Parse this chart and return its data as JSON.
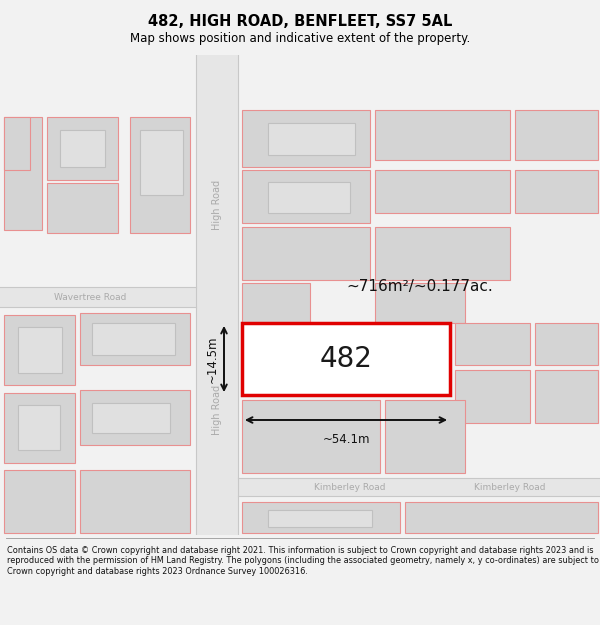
{
  "title": "482, HIGH ROAD, BENFLEET, SS7 5AL",
  "subtitle": "Map shows position and indicative extent of the property.",
  "footer": "Contains OS data © Crown copyright and database right 2021. This information is subject to Crown copyright and database rights 2023 and is reproduced with the permission of HM Land Registry. The polygons (including the associated geometry, namely x, y co-ordinates) are subject to Crown copyright and database rights 2023 Ordnance Survey 100026316.",
  "bg_color": "#f2f2f2",
  "map_bg": "#ffffff",
  "road_fill": "#e6e6e6",
  "road_stroke": "#c8c8c8",
  "building_fill": "#d4d4d4",
  "inner_fill": "#e0e0e0",
  "inner_stroke": "#c0c0c0",
  "highlight_stroke": "#e00000",
  "highlight_fill": "#ffffff",
  "pink_stroke": "#e89090",
  "label_482": "482",
  "area_label": "~716m²/~0.177ac.",
  "width_label": "~54.1m",
  "height_label": "~14.5m",
  "road_label_high": "High Road",
  "road_label_wavertree": "Wavertree Road",
  "road_label_kimberley1": "Kimberley Road",
  "road_label_kimberley2": "Kimberley Road",
  "road_color": "#aaaaaa"
}
